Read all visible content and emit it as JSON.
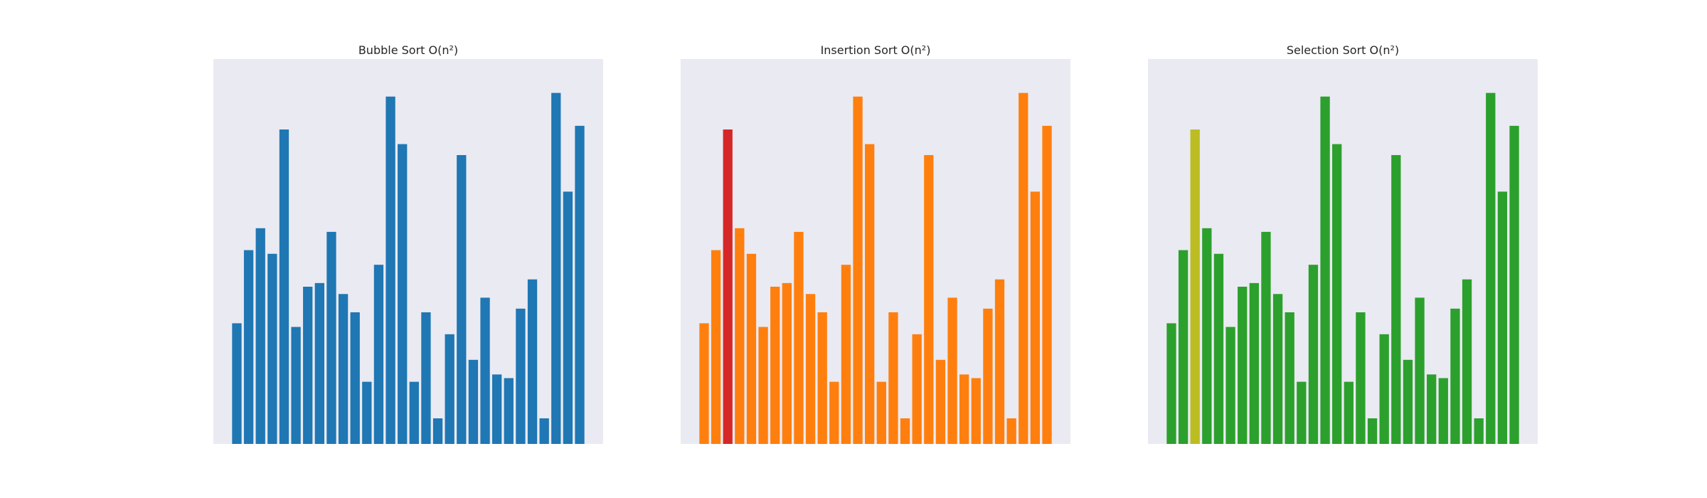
{
  "chart_data": [
    {
      "type": "bar",
      "title": "Bubble Sort O(n²)",
      "xlabel": "",
      "ylabel": "",
      "ylim": [
        0,
        100
      ],
      "grid": false,
      "axes_visible": false,
      "base_color": "#1f77b4",
      "highlights": [],
      "values": [
        33,
        53,
        59,
        52,
        86,
        32,
        43,
        44,
        58,
        41,
        36,
        17,
        49,
        95,
        82,
        17,
        36,
        7,
        30,
        79,
        23,
        40,
        19,
        18,
        37,
        45,
        7,
        96,
        69,
        87
      ]
    },
    {
      "type": "bar",
      "title": "Insertion Sort O(n²)",
      "xlabel": "",
      "ylabel": "",
      "ylim": [
        0,
        100
      ],
      "grid": false,
      "axes_visible": false,
      "base_color": "#ff7f0e",
      "highlights": [
        {
          "index": 2,
          "color": "#d62728"
        }
      ],
      "values": [
        33,
        53,
        86,
        59,
        52,
        32,
        43,
        44,
        58,
        41,
        36,
        17,
        49,
        95,
        82,
        17,
        36,
        7,
        30,
        79,
        23,
        40,
        19,
        18,
        37,
        45,
        7,
        96,
        69,
        87
      ]
    },
    {
      "type": "bar",
      "title": "Selection Sort O(n²)",
      "xlabel": "",
      "ylabel": "",
      "ylim": [
        0,
        100
      ],
      "grid": false,
      "axes_visible": false,
      "base_color": "#2ca02c",
      "highlights": [
        {
          "index": 2,
          "color": "#bcbd22"
        }
      ],
      "values": [
        33,
        53,
        86,
        59,
        52,
        32,
        43,
        44,
        58,
        41,
        36,
        17,
        49,
        95,
        82,
        17,
        36,
        7,
        30,
        79,
        23,
        40,
        19,
        18,
        37,
        45,
        7,
        96,
        69,
        87
      ]
    }
  ]
}
